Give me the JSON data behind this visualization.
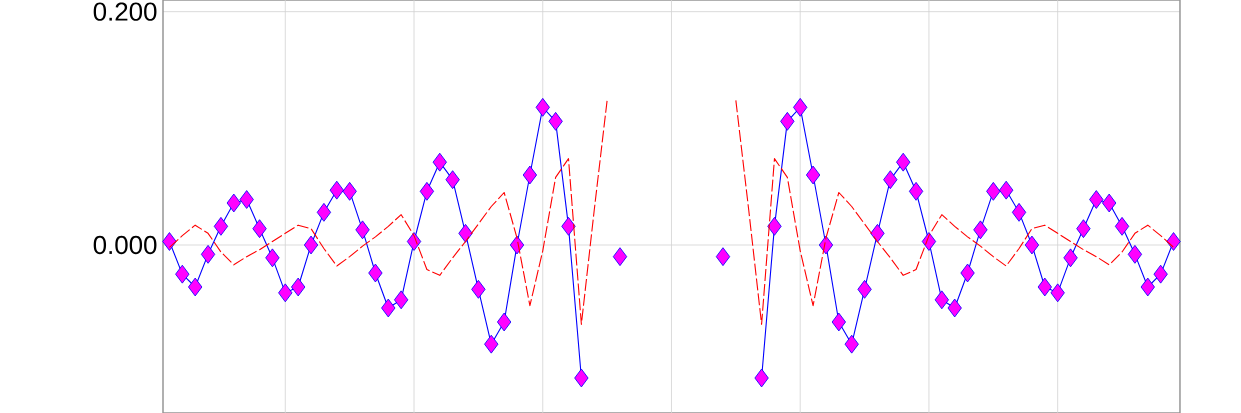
{
  "chart_data": {
    "type": "line",
    "categories": [
      null,
      null,
      null,
      null,
      null,
      null,
      null,
      null,
      null,
      null,
      null,
      null,
      null,
      null,
      null,
      null,
      null,
      null,
      null,
      null,
      null,
      null,
      null,
      null,
      null,
      null,
      null,
      null,
      null,
      null,
      null,
      null,
      null,
      null,
      null,
      null,
      null,
      null,
      null,
      null,
      null,
      null,
      null,
      null,
      null,
      null,
      null,
      null,
      null,
      null,
      null,
      null,
      null,
      null,
      null,
      null,
      null,
      null,
      null,
      null,
      null,
      null,
      null,
      null,
      null,
      null,
      null,
      null,
      null,
      null,
      null,
      null,
      null,
      null,
      null,
      null,
      null,
      null,
      null
    ],
    "ylim": [
      -0.144,
      0.21
    ],
    "yticks": [
      {
        "value": 0,
        "label": "0.000"
      },
      {
        "value": 0.2,
        "label": "0.200"
      }
    ],
    "tick_labels": "y",
    "grid": true,
    "series": [
      {
        "color": "#0000ff",
        "marker": "diamond",
        "line_style": "solid",
        "values": [
          0.003,
          -0.025,
          -0.036,
          -0.008,
          0.016,
          0.036,
          0.039,
          0.014,
          -0.011,
          -0.041,
          -0.036,
          0,
          0.028,
          0.047,
          0.046,
          0.013,
          -0.024,
          -0.054,
          -0.047,
          0.003,
          0.046,
          0.071,
          0.056,
          0.01,
          -0.038,
          -0.085,
          -0.066,
          0,
          0.06,
          0.118,
          0.106,
          0.016,
          -0.114,
          null,
          null,
          -0.01,
          null,
          null,
          null,
          null,
          null,
          null,
          null,
          -0.01,
          null,
          null,
          -0.114,
          0.016,
          0.106,
          0.118,
          0.06,
          0,
          -0.066,
          -0.085,
          -0.038,
          0.01,
          0.056,
          0.071,
          0.046,
          0.003,
          -0.047,
          -0.054,
          -0.024,
          0.013,
          0.046,
          0.047,
          0.028,
          0,
          -0.036,
          -0.041,
          -0.011,
          0.014,
          0.039,
          0.036,
          0.016,
          -0.008,
          -0.036,
          -0.025,
          0.003
        ]
      },
      {
        "color": "#ff0000",
        "marker": "none",
        "line_style": "dashed",
        "values": [
          -0.002,
          0.008,
          0.017,
          0.01,
          -0.006,
          -0.017,
          -0.01,
          -0.004,
          0.003,
          0.01,
          0.017,
          0.014,
          -0.003,
          -0.018,
          -0.01,
          -0.001,
          0.007,
          0.016,
          0.026,
          0.008,
          -0.021,
          -0.026,
          -0.011,
          0.003,
          0.018,
          0.033,
          0.045,
          0.006,
          -0.052,
          -0.005,
          0.058,
          0.074,
          -0.068,
          0.03,
          0.124,
          null,
          null,
          null,
          null,
          null,
          null,
          null,
          null,
          null,
          0.124,
          0.03,
          -0.068,
          0.074,
          0.058,
          -0.005,
          -0.052,
          0.006,
          0.045,
          0.033,
          0.018,
          0.003,
          -0.011,
          -0.026,
          -0.021,
          0.008,
          0.026,
          0.016,
          0.007,
          -0.001,
          -0.01,
          -0.018,
          -0.003,
          0.014,
          0.017,
          0.01,
          0.003,
          -0.004,
          -0.01,
          -0.017,
          -0.006,
          0.01,
          0.017,
          0.008,
          -0.002
        ]
      }
    ]
  }
}
